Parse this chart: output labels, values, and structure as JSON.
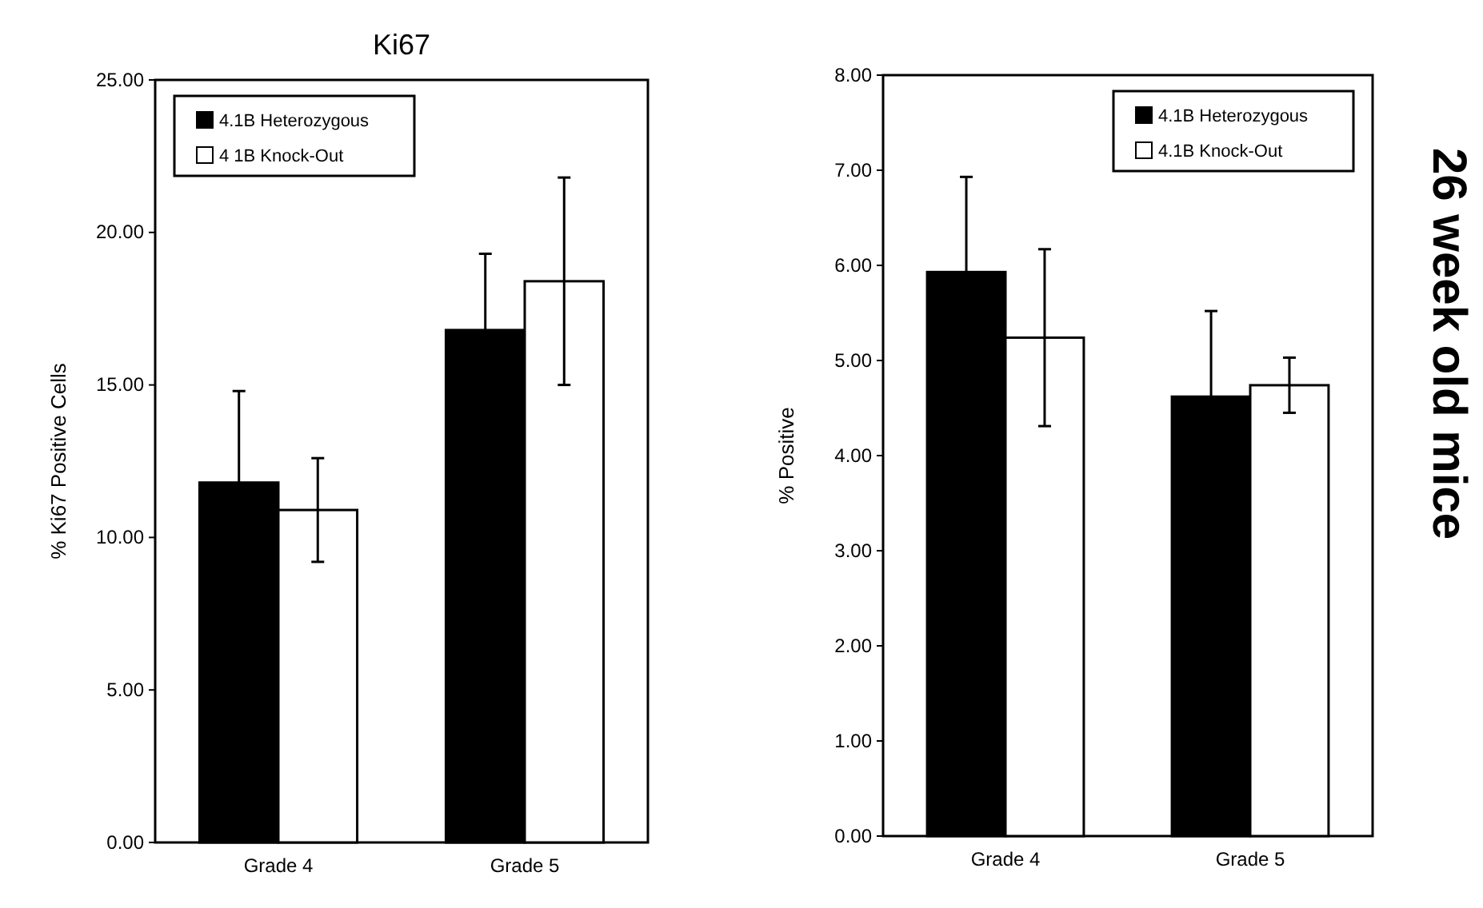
{
  "chart_data": [
    {
      "type": "bar",
      "title": "Ki67",
      "ylabel": "% Ki67 Positive Cells",
      "categories": [
        "Grade 4",
        "Grade 5"
      ],
      "series": [
        {
          "name": "4.1B Heterozygous",
          "color": "#000000",
          "values": [
            11.8,
            16.8
          ],
          "errors": [
            3.0,
            2.5
          ]
        },
        {
          "name": "4 1B Knock-Out",
          "color": "#ffffff",
          "values": [
            10.9,
            18.4
          ],
          "errors": [
            1.7,
            3.4
          ]
        }
      ],
      "ylim": [
        0,
        25
      ],
      "yticks": [
        {
          "value": 0,
          "label": "0.00"
        },
        {
          "value": 5,
          "label": "5.00"
        },
        {
          "value": 10,
          "label": "10.00"
        },
        {
          "value": 15,
          "label": "15.00"
        },
        {
          "value": 20,
          "label": "20.00"
        },
        {
          "value": 25,
          "label": "25.00"
        }
      ],
      "legend": "top left",
      "grid": false
    },
    {
      "type": "bar",
      "ylabel": "% Positive",
      "categories": [
        "Grade 4",
        "Grade 5"
      ],
      "series": [
        {
          "name": "4.1B Heterozygous",
          "color": "#000000",
          "values": [
            5.93,
            4.62
          ],
          "errors": [
            1.0,
            0.9
          ]
        },
        {
          "name": "4.1B Knock-Out",
          "color": "#ffffff",
          "values": [
            5.24,
            4.74
          ],
          "errors": [
            0.93,
            0.29
          ]
        }
      ],
      "ylim": [
        0,
        8
      ],
      "yticks": [
        {
          "value": 0,
          "label": "0.00"
        },
        {
          "value": 1,
          "label": "1.00"
        },
        {
          "value": 2,
          "label": "2.00"
        },
        {
          "value": 3,
          "label": "3.00"
        },
        {
          "value": 4,
          "label": "4.00"
        },
        {
          "value": 5,
          "label": "5.00"
        },
        {
          "value": 6,
          "label": "6.00"
        },
        {
          "value": 7,
          "label": "7.00"
        },
        {
          "value": 8,
          "label": "8.00"
        }
      ],
      "legend": "top right",
      "grid": false,
      "annotations": [
        "26 week old mice"
      ]
    }
  ]
}
